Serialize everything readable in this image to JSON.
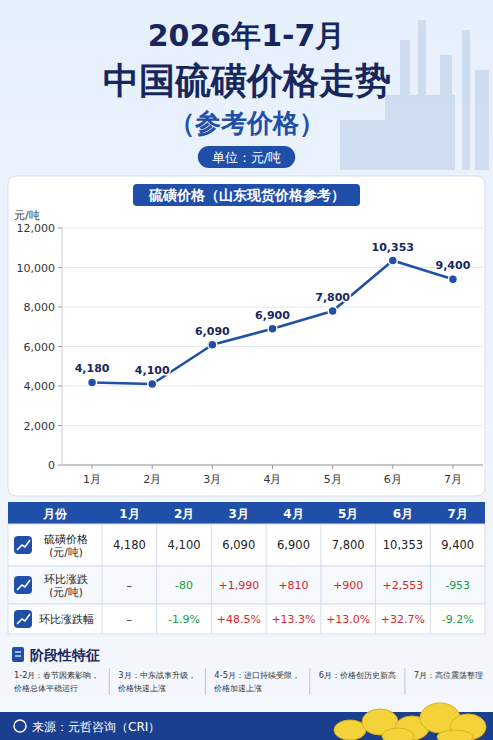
{
  "header": {
    "title": "2026年1-7月",
    "headline": "中国硫磺价格走势",
    "subtitle": "（参考价格）",
    "unit": "单位：元/吨"
  },
  "chart_data": {
    "type": "line",
    "title": "硫磺价格（山东现货价格参考）",
    "y_label": "元/吨",
    "categories": [
      "1月",
      "2月",
      "3月",
      "4月",
      "5月",
      "6月",
      "7月"
    ],
    "values": [
      4180,
      4100,
      6090,
      6900,
      7800,
      10353,
      9400
    ],
    "value_labels": [
      "4,180",
      "4,100",
      "6,090",
      "6,900",
      "7,800",
      "10,353",
      "9,400"
    ],
    "data_labels": true,
    "color": "#1f4fa8",
    "marker": "circle",
    "grid": true,
    "ylim": [
      0,
      12000
    ],
    "yticks": [
      0,
      {
        "value": 2000,
        "label": "2,000"
      },
      {
        "value": 4000,
        "label": "4,000"
      },
      {
        "value": 6000,
        "label": "6,000"
      },
      {
        "value": 8000,
        "label": "8,000"
      },
      {
        "value": 10000,
        "label": "10,000"
      },
      {
        "value": 12000,
        "label": "12,000"
      }
    ]
  },
  "table": {
    "header": [
      "月份",
      "1月",
      "2月",
      "3月",
      "4月",
      "5月",
      "6月",
      "7月"
    ],
    "rows": [
      {
        "label": [
          "硫磺价格",
          "(元/吨)"
        ],
        "cells": [
          "4,180",
          "4,100",
          "6,090",
          "6,900",
          "7,800",
          "10,353",
          "9,400"
        ]
      },
      {
        "label": [
          "环比涨跌",
          "(元/吨)"
        ],
        "cells": [
          "–",
          "-80",
          "+1,990",
          "+810",
          "+900",
          "+2,553",
          "-953"
        ]
      },
      {
        "label": [
          "环比涨跌幅"
        ],
        "cells": [
          "–",
          "-1.9%",
          "+48.5%",
          "+13.3%",
          "+13.0%",
          "+32.7%",
          "-9.2%"
        ]
      }
    ]
  },
  "phases": {
    "title": "阶段性特征",
    "items": [
      [
        "1-2月：春节因素影响，",
        "价格总体平稳运行"
      ],
      [
        "3月：中东战事升级，",
        "价格快速上涨"
      ],
      [
        "4-5月：进口持续受限，",
        "价格加速上涨"
      ],
      [
        "6月：价格创历史新高"
      ],
      [
        "7月：高位震荡整理"
      ]
    ]
  },
  "footer": {
    "source": "来源：元哲咨询（CRI）"
  }
}
